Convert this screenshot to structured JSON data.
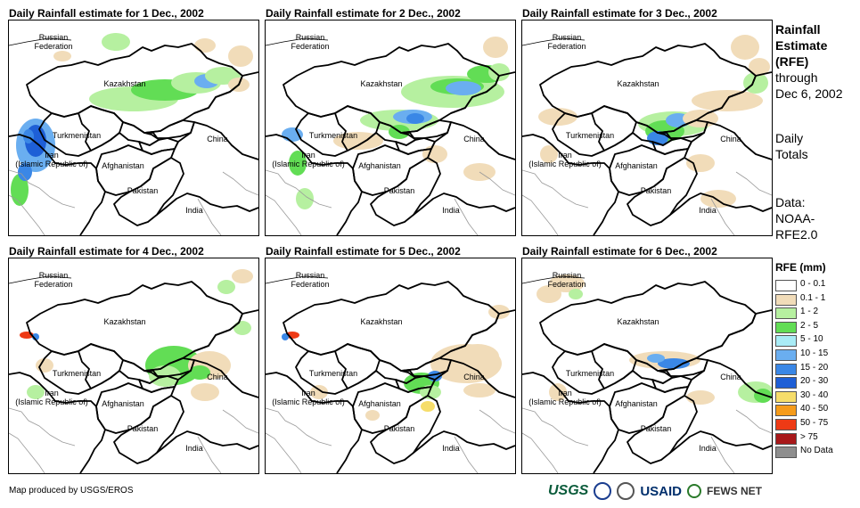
{
  "panels": [
    {
      "title": "Daily Rainfall estimate for 1 Dec., 2002"
    },
    {
      "title": "Daily Rainfall estimate for 2 Dec., 2002"
    },
    {
      "title": "Daily Rainfall estimate for 3 Dec., 2002"
    },
    {
      "title": "Daily Rainfall estimate for 4 Dec., 2002"
    },
    {
      "title": "Daily Rainfall estimate for 5 Dec., 2002"
    },
    {
      "title": "Daily Rainfall estimate for 6 Dec., 2002"
    }
  ],
  "map_labels": {
    "russia": "Russian\nFederation",
    "kazakhstan": "Kazakhstan",
    "turkmenistan": "Turkmenistan",
    "iran": "Iran\n(Islamic Republic of)",
    "afghanistan": "Afghanistan",
    "pakistan": "Pakistan",
    "china": "China",
    "india": "India"
  },
  "side": {
    "title_lines": [
      "Rainfall",
      "Estimate",
      "(RFE)"
    ],
    "through": "through",
    "date": "Dec 6, 2002",
    "daily": "Daily",
    "totals": "Totals",
    "data_label": "Data:",
    "data_source_1": "NOAA-",
    "data_source_2": "RFE2.0"
  },
  "legend": {
    "title": "RFE (mm)",
    "items": [
      {
        "label": "0 - 0.1",
        "color": "#ffffff"
      },
      {
        "label": "0.1 - 1",
        "color": "#f1dcb9"
      },
      {
        "label": "1 - 2",
        "color": "#b6f0a0"
      },
      {
        "label": "2 - 5",
        "color": "#62dd55"
      },
      {
        "label": "5 - 10",
        "color": "#a9ecf6"
      },
      {
        "label": "10 - 15",
        "color": "#6aaef0"
      },
      {
        "label": "15 - 20",
        "color": "#3a87e6"
      },
      {
        "label": "20 - 30",
        "color": "#1e5fd6"
      },
      {
        "label": "30 - 40",
        "color": "#f6dd6a"
      },
      {
        "label": "40 - 50",
        "color": "#f59b1a"
      },
      {
        "label": "50 - 75",
        "color": "#ee3a15"
      },
      {
        "label": "> 75",
        "color": "#a8181a"
      },
      {
        "label": "No Data",
        "color": "#8e8e8e"
      }
    ]
  },
  "credit": "Map produced by USGS/EROS",
  "logos": {
    "usgs": "USGS",
    "usaid": "USAID",
    "fews": "FEWS NET"
  }
}
